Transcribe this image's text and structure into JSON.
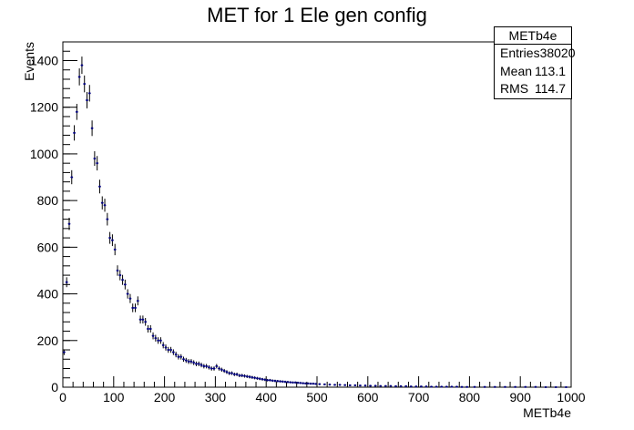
{
  "chart_data": {
    "type": "histogram",
    "title": "MET for 1 Ele gen config",
    "xlabel": "METb4e",
    "ylabel": "Events",
    "xlim": [
      0,
      1000
    ],
    "ylim": [
      0,
      1480
    ],
    "x_ticks": [
      0,
      100,
      200,
      300,
      400,
      500,
      600,
      700,
      800,
      900,
      1000
    ],
    "y_ticks": [
      0,
      200,
      400,
      600,
      800,
      1000,
      1200,
      1400
    ],
    "bin_width": 5,
    "color": "#00007f",
    "stats": {
      "name": "METb4e",
      "entries_label": "Entries",
      "entries": "38020",
      "mean_label": "Mean",
      "mean": "113.1",
      "rms_label": "RMS",
      "rms": "114.7"
    },
    "x": [
      2.5,
      7.5,
      12.5,
      17.5,
      22.5,
      27.5,
      32.5,
      37.5,
      42.5,
      47.5,
      52.5,
      57.5,
      62.5,
      67.5,
      72.5,
      77.5,
      82.5,
      87.5,
      92.5,
      97.5,
      102.5,
      107.5,
      112.5,
      117.5,
      122.5,
      127.5,
      132.5,
      137.5,
      142.5,
      147.5,
      152.5,
      157.5,
      162.5,
      167.5,
      172.5,
      177.5,
      182.5,
      187.5,
      192.5,
      197.5,
      202.5,
      207.5,
      212.5,
      217.5,
      222.5,
      227.5,
      232.5,
      237.5,
      242.5,
      247.5,
      252.5,
      257.5,
      262.5,
      267.5,
      272.5,
      277.5,
      282.5,
      287.5,
      292.5,
      297.5,
      302.5,
      307.5,
      312.5,
      317.5,
      322.5,
      327.5,
      332.5,
      337.5,
      342.5,
      347.5,
      352.5,
      357.5,
      362.5,
      367.5,
      372.5,
      377.5,
      382.5,
      387.5,
      392.5,
      397.5,
      402.5,
      407.5,
      412.5,
      417.5,
      422.5,
      427.5,
      432.5,
      437.5,
      442.5,
      447.5,
      452.5,
      457.5,
      462.5,
      467.5,
      472.5,
      477.5,
      482.5,
      487.5,
      492.5,
      497.5,
      505,
      515,
      525,
      535,
      545,
      555,
      565,
      575,
      585,
      595,
      605,
      615,
      625,
      635,
      645,
      655,
      665,
      675,
      685,
      695,
      705,
      715,
      725,
      735,
      745,
      755,
      765,
      775,
      785,
      795,
      810,
      830,
      850,
      870,
      890,
      910,
      930,
      950,
      970,
      990
    ],
    "y": [
      150,
      450,
      700,
      900,
      1090,
      1180,
      1330,
      1380,
      1300,
      1230,
      1260,
      1110,
      980,
      960,
      860,
      790,
      780,
      720,
      640,
      630,
      590,
      500,
      480,
      460,
      440,
      400,
      380,
      340,
      340,
      370,
      290,
      290,
      280,
      250,
      250,
      220,
      210,
      200,
      200,
      180,
      170,
      160,
      160,
      150,
      140,
      130,
      130,
      120,
      115,
      110,
      110,
      105,
      100,
      100,
      95,
      90,
      90,
      85,
      80,
      80,
      90,
      80,
      75,
      70,
      65,
      60,
      60,
      55,
      55,
      50,
      50,
      48,
      46,
      44,
      42,
      40,
      38,
      36,
      34,
      32,
      30,
      30,
      28,
      27,
      26,
      25,
      24,
      23,
      22,
      21,
      20,
      20,
      19,
      18,
      17,
      16,
      16,
      15,
      15,
      14,
      13,
      12,
      11,
      10,
      10,
      9,
      8,
      8,
      7,
      7,
      6,
      6,
      5,
      5,
      5,
      4,
      4,
      4,
      3,
      3,
      3,
      3,
      2,
      2,
      2,
      2,
      2,
      2,
      1,
      1,
      1,
      1,
      1,
      1,
      1,
      1,
      1,
      0,
      0,
      0
    ]
  }
}
